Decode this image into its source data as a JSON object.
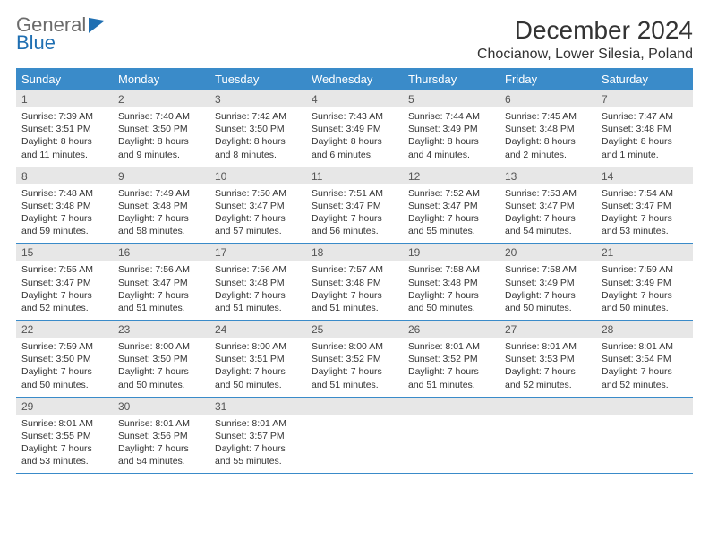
{
  "logo": {
    "word1": "General",
    "word2": "Blue"
  },
  "title": "December 2024",
  "location": "Chocianow, Lower Silesia, Poland",
  "colors": {
    "header_bar": "#3a8bc9",
    "daynum_bg": "#e7e7e7",
    "week_border": "#3a8bc9",
    "text": "#333333",
    "logo_gray": "#6b6b6b",
    "logo_blue": "#1f6fb2"
  },
  "weekdays": [
    "Sunday",
    "Monday",
    "Tuesday",
    "Wednesday",
    "Thursday",
    "Friday",
    "Saturday"
  ],
  "weeks": [
    [
      {
        "n": "1",
        "sunrise": "Sunrise: 7:39 AM",
        "sunset": "Sunset: 3:51 PM",
        "day1": "Daylight: 8 hours",
        "day2": "and 11 minutes."
      },
      {
        "n": "2",
        "sunrise": "Sunrise: 7:40 AM",
        "sunset": "Sunset: 3:50 PM",
        "day1": "Daylight: 8 hours",
        "day2": "and 9 minutes."
      },
      {
        "n": "3",
        "sunrise": "Sunrise: 7:42 AM",
        "sunset": "Sunset: 3:50 PM",
        "day1": "Daylight: 8 hours",
        "day2": "and 8 minutes."
      },
      {
        "n": "4",
        "sunrise": "Sunrise: 7:43 AM",
        "sunset": "Sunset: 3:49 PM",
        "day1": "Daylight: 8 hours",
        "day2": "and 6 minutes."
      },
      {
        "n": "5",
        "sunrise": "Sunrise: 7:44 AM",
        "sunset": "Sunset: 3:49 PM",
        "day1": "Daylight: 8 hours",
        "day2": "and 4 minutes."
      },
      {
        "n": "6",
        "sunrise": "Sunrise: 7:45 AM",
        "sunset": "Sunset: 3:48 PM",
        "day1": "Daylight: 8 hours",
        "day2": "and 2 minutes."
      },
      {
        "n": "7",
        "sunrise": "Sunrise: 7:47 AM",
        "sunset": "Sunset: 3:48 PM",
        "day1": "Daylight: 8 hours",
        "day2": "and 1 minute."
      }
    ],
    [
      {
        "n": "8",
        "sunrise": "Sunrise: 7:48 AM",
        "sunset": "Sunset: 3:48 PM",
        "day1": "Daylight: 7 hours",
        "day2": "and 59 minutes."
      },
      {
        "n": "9",
        "sunrise": "Sunrise: 7:49 AM",
        "sunset": "Sunset: 3:48 PM",
        "day1": "Daylight: 7 hours",
        "day2": "and 58 minutes."
      },
      {
        "n": "10",
        "sunrise": "Sunrise: 7:50 AM",
        "sunset": "Sunset: 3:47 PM",
        "day1": "Daylight: 7 hours",
        "day2": "and 57 minutes."
      },
      {
        "n": "11",
        "sunrise": "Sunrise: 7:51 AM",
        "sunset": "Sunset: 3:47 PM",
        "day1": "Daylight: 7 hours",
        "day2": "and 56 minutes."
      },
      {
        "n": "12",
        "sunrise": "Sunrise: 7:52 AM",
        "sunset": "Sunset: 3:47 PM",
        "day1": "Daylight: 7 hours",
        "day2": "and 55 minutes."
      },
      {
        "n": "13",
        "sunrise": "Sunrise: 7:53 AM",
        "sunset": "Sunset: 3:47 PM",
        "day1": "Daylight: 7 hours",
        "day2": "and 54 minutes."
      },
      {
        "n": "14",
        "sunrise": "Sunrise: 7:54 AM",
        "sunset": "Sunset: 3:47 PM",
        "day1": "Daylight: 7 hours",
        "day2": "and 53 minutes."
      }
    ],
    [
      {
        "n": "15",
        "sunrise": "Sunrise: 7:55 AM",
        "sunset": "Sunset: 3:47 PM",
        "day1": "Daylight: 7 hours",
        "day2": "and 52 minutes."
      },
      {
        "n": "16",
        "sunrise": "Sunrise: 7:56 AM",
        "sunset": "Sunset: 3:47 PM",
        "day1": "Daylight: 7 hours",
        "day2": "and 51 minutes."
      },
      {
        "n": "17",
        "sunrise": "Sunrise: 7:56 AM",
        "sunset": "Sunset: 3:48 PM",
        "day1": "Daylight: 7 hours",
        "day2": "and 51 minutes."
      },
      {
        "n": "18",
        "sunrise": "Sunrise: 7:57 AM",
        "sunset": "Sunset: 3:48 PM",
        "day1": "Daylight: 7 hours",
        "day2": "and 51 minutes."
      },
      {
        "n": "19",
        "sunrise": "Sunrise: 7:58 AM",
        "sunset": "Sunset: 3:48 PM",
        "day1": "Daylight: 7 hours",
        "day2": "and 50 minutes."
      },
      {
        "n": "20",
        "sunrise": "Sunrise: 7:58 AM",
        "sunset": "Sunset: 3:49 PM",
        "day1": "Daylight: 7 hours",
        "day2": "and 50 minutes."
      },
      {
        "n": "21",
        "sunrise": "Sunrise: 7:59 AM",
        "sunset": "Sunset: 3:49 PM",
        "day1": "Daylight: 7 hours",
        "day2": "and 50 minutes."
      }
    ],
    [
      {
        "n": "22",
        "sunrise": "Sunrise: 7:59 AM",
        "sunset": "Sunset: 3:50 PM",
        "day1": "Daylight: 7 hours",
        "day2": "and 50 minutes."
      },
      {
        "n": "23",
        "sunrise": "Sunrise: 8:00 AM",
        "sunset": "Sunset: 3:50 PM",
        "day1": "Daylight: 7 hours",
        "day2": "and 50 minutes."
      },
      {
        "n": "24",
        "sunrise": "Sunrise: 8:00 AM",
        "sunset": "Sunset: 3:51 PM",
        "day1": "Daylight: 7 hours",
        "day2": "and 50 minutes."
      },
      {
        "n": "25",
        "sunrise": "Sunrise: 8:00 AM",
        "sunset": "Sunset: 3:52 PM",
        "day1": "Daylight: 7 hours",
        "day2": "and 51 minutes."
      },
      {
        "n": "26",
        "sunrise": "Sunrise: 8:01 AM",
        "sunset": "Sunset: 3:52 PM",
        "day1": "Daylight: 7 hours",
        "day2": "and 51 minutes."
      },
      {
        "n": "27",
        "sunrise": "Sunrise: 8:01 AM",
        "sunset": "Sunset: 3:53 PM",
        "day1": "Daylight: 7 hours",
        "day2": "and 52 minutes."
      },
      {
        "n": "28",
        "sunrise": "Sunrise: 8:01 AM",
        "sunset": "Sunset: 3:54 PM",
        "day1": "Daylight: 7 hours",
        "day2": "and 52 minutes."
      }
    ],
    [
      {
        "n": "29",
        "sunrise": "Sunrise: 8:01 AM",
        "sunset": "Sunset: 3:55 PM",
        "day1": "Daylight: 7 hours",
        "day2": "and 53 minutes."
      },
      {
        "n": "30",
        "sunrise": "Sunrise: 8:01 AM",
        "sunset": "Sunset: 3:56 PM",
        "day1": "Daylight: 7 hours",
        "day2": "and 54 minutes."
      },
      {
        "n": "31",
        "sunrise": "Sunrise: 8:01 AM",
        "sunset": "Sunset: 3:57 PM",
        "day1": "Daylight: 7 hours",
        "day2": "and 55 minutes."
      },
      null,
      null,
      null,
      null
    ]
  ]
}
